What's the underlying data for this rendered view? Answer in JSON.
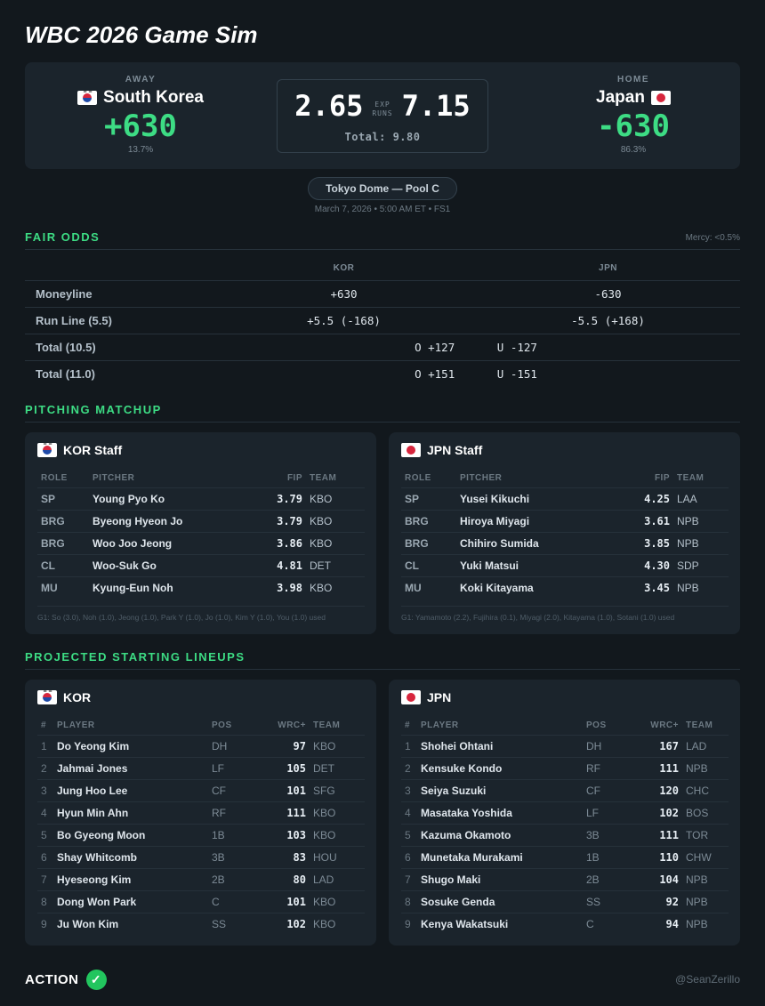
{
  "title": "WBC 2026 Game Sim",
  "away": {
    "side_label": "AWAY",
    "name": "South Korea",
    "odds": "+630",
    "pct": "13.7%"
  },
  "home": {
    "side_label": "HOME",
    "name": "Japan",
    "odds": "-630",
    "pct": "86.3%"
  },
  "runs": {
    "away": "2.65",
    "home": "7.15",
    "exp_label": "EXP",
    "runs_label": "RUNS",
    "total": "Total: 9.80"
  },
  "venue": {
    "name": "Tokyo Dome — Pool C",
    "sub": "March 7, 2026 • 5:00 AM ET • FS1"
  },
  "fair_odds": {
    "title": "FAIR ODDS",
    "mercy": "Mercy: <0.5%",
    "col_away": "KOR",
    "col_home": "JPN",
    "rows": [
      {
        "label": "Moneyline",
        "away": "+630",
        "home": "-630"
      },
      {
        "label": "Run Line (5.5)",
        "away": "+5.5 (-168)",
        "home": "-5.5 (+168)"
      }
    ],
    "totals": [
      {
        "label": "Total (10.5)",
        "over": "O +127",
        "under": "U -127"
      },
      {
        "label": "Total (11.0)",
        "over": "O +151",
        "under": "U -151"
      }
    ]
  },
  "pitching": {
    "title": "PITCHING MATCHUP",
    "headers": {
      "role": "ROLE",
      "pitcher": "PITCHER",
      "fip": "FIP",
      "team": "TEAM"
    },
    "away": {
      "title": "KOR Staff",
      "rows": [
        {
          "role": "SP",
          "name": "Young Pyo Ko",
          "fip": "3.79",
          "team": "KBO"
        },
        {
          "role": "BRG",
          "name": "Byeong Hyeon Jo",
          "fip": "3.79",
          "team": "KBO"
        },
        {
          "role": "BRG",
          "name": "Woo Joo Jeong",
          "fip": "3.86",
          "team": "KBO"
        },
        {
          "role": "CL",
          "name": "Woo-Suk Go",
          "fip": "4.81",
          "team": "DET"
        },
        {
          "role": "MU",
          "name": "Kyung-Eun Noh",
          "fip": "3.98",
          "team": "KBO"
        }
      ],
      "used": "G1: So (3.0), Noh (1.0), Jeong (1.0), Park Y (1.0), Jo (1.0), Kim Y (1.0), You (1.0) used"
    },
    "home": {
      "title": "JPN Staff",
      "rows": [
        {
          "role": "SP",
          "name": "Yusei Kikuchi",
          "fip": "4.25",
          "team": "LAA"
        },
        {
          "role": "BRG",
          "name": "Hiroya Miyagi",
          "fip": "3.61",
          "team": "NPB"
        },
        {
          "role": "BRG",
          "name": "Chihiro Sumida",
          "fip": "3.85",
          "team": "NPB"
        },
        {
          "role": "CL",
          "name": "Yuki Matsui",
          "fip": "4.30",
          "team": "SDP"
        },
        {
          "role": "MU",
          "name": "Koki Kitayama",
          "fip": "3.45",
          "team": "NPB"
        }
      ],
      "used": "G1: Yamamoto (2.2), Fujihira (0.1), Miyagi (2.0), Kitayama (1.0), Sotani (1.0) used"
    }
  },
  "lineups": {
    "title": "PROJECTED STARTING LINEUPS",
    "headers": {
      "num": "#",
      "player": "PLAYER",
      "pos": "POS",
      "wrc": "WRC+",
      "team": "TEAM"
    },
    "away": {
      "title": "KOR",
      "rows": [
        {
          "n": "1",
          "name": "Do Yeong Kim",
          "pos": "DH",
          "wrc": "97",
          "team": "KBO"
        },
        {
          "n": "2",
          "name": "Jahmai Jones",
          "pos": "LF",
          "wrc": "105",
          "team": "DET"
        },
        {
          "n": "3",
          "name": "Jung Hoo Lee",
          "pos": "CF",
          "wrc": "101",
          "team": "SFG"
        },
        {
          "n": "4",
          "name": "Hyun Min Ahn",
          "pos": "RF",
          "wrc": "111",
          "team": "KBO"
        },
        {
          "n": "5",
          "name": "Bo Gyeong Moon",
          "pos": "1B",
          "wrc": "103",
          "team": "KBO"
        },
        {
          "n": "6",
          "name": "Shay Whitcomb",
          "pos": "3B",
          "wrc": "83",
          "team": "HOU"
        },
        {
          "n": "7",
          "name": "Hyeseong Kim",
          "pos": "2B",
          "wrc": "80",
          "team": "LAD"
        },
        {
          "n": "8",
          "name": "Dong Won Park",
          "pos": "C",
          "wrc": "101",
          "team": "KBO"
        },
        {
          "n": "9",
          "name": "Ju Won Kim",
          "pos": "SS",
          "wrc": "102",
          "team": "KBO"
        }
      ]
    },
    "home": {
      "title": "JPN",
      "rows": [
        {
          "n": "1",
          "name": "Shohei Ohtani",
          "pos": "DH",
          "wrc": "167",
          "team": "LAD"
        },
        {
          "n": "2",
          "name": "Kensuke Kondo",
          "pos": "RF",
          "wrc": "111",
          "team": "NPB"
        },
        {
          "n": "3",
          "name": "Seiya Suzuki",
          "pos": "CF",
          "wrc": "120",
          "team": "CHC"
        },
        {
          "n": "4",
          "name": "Masataka Yoshida",
          "pos": "LF",
          "wrc": "102",
          "team": "BOS"
        },
        {
          "n": "5",
          "name": "Kazuma Okamoto",
          "pos": "3B",
          "wrc": "111",
          "team": "TOR"
        },
        {
          "n": "6",
          "name": "Munetaka Murakami",
          "pos": "1B",
          "wrc": "110",
          "team": "CHW"
        },
        {
          "n": "7",
          "name": "Shugo Maki",
          "pos": "2B",
          "wrc": "104",
          "team": "NPB"
        },
        {
          "n": "8",
          "name": "Sosuke Genda",
          "pos": "SS",
          "wrc": "92",
          "team": "NPB"
        },
        {
          "n": "9",
          "name": "Kenya Wakatsuki",
          "pos": "C",
          "wrc": "94",
          "team": "NPB"
        }
      ]
    }
  },
  "footer": {
    "action": "ACTION",
    "handle": "@SeanZerillo"
  },
  "colors": {
    "accent": "#3ddc84",
    "background": "#12181d",
    "card": "#1b242c",
    "check": "#22c55e"
  },
  "icons": {
    "away_flag": "south-korea-flag-icon",
    "home_flag": "japan-flag-icon",
    "action": "check-circle-icon"
  }
}
